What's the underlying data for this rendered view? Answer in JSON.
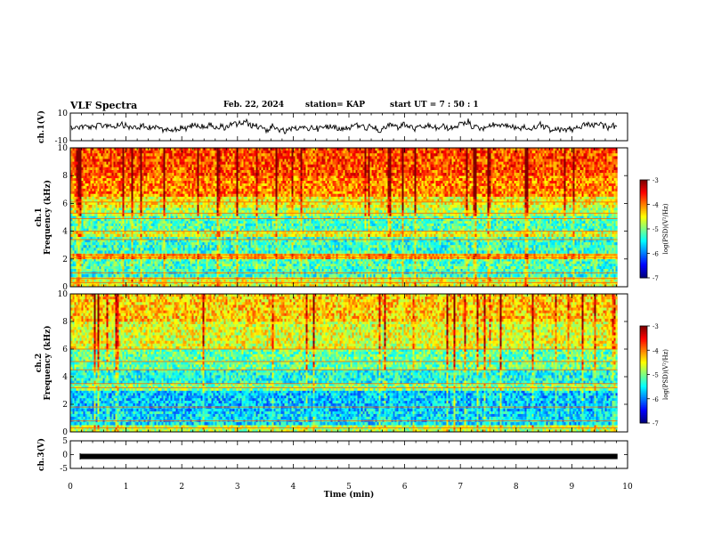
{
  "header": {
    "title": "VLF Spectra",
    "date": "Feb. 22, 2024",
    "station": "station= KAP",
    "start_ut": "start UT =   7 : 50 : 1"
  },
  "colorbar_label": "log(PSD)(V²/Hz)",
  "colors": {
    "jet": [
      "#000080",
      "#0000ff",
      "#0080ff",
      "#00ffff",
      "#80ff80",
      "#ffff00",
      "#ff8000",
      "#ff0000",
      "#800000"
    ]
  },
  "chart_data": [
    {
      "type": "line",
      "ylabel": "ch.1(V)",
      "ylim": [
        -10,
        10
      ],
      "yticks": [
        "10",
        "-10"
      ],
      "x_range": [
        0,
        9.82
      ],
      "note": "waveform envelope of ch.1 signal"
    },
    {
      "type": "heatmap",
      "ylabel": "ch.1\nFrequency (kHz)",
      "ylim": [
        0,
        10
      ],
      "yticks": [
        "0",
        "2",
        "4",
        "6",
        "8",
        "10"
      ],
      "x_range": [
        0,
        9.82
      ],
      "colorbar": {
        "ticks": [
          "-3",
          "-4",
          "-5",
          "-6",
          "-7"
        ],
        "range": [
          -7,
          -3
        ]
      },
      "bands": [
        {
          "f": [
            0.0,
            0.7
          ],
          "level": -4.6
        },
        {
          "f": [
            0.7,
            1.3
          ],
          "level": -5.3
        },
        {
          "f": [
            1.3,
            2.0
          ],
          "level": -5.2
        },
        {
          "f": [
            2.0,
            2.4
          ],
          "level": -4.2
        },
        {
          "f": [
            2.4,
            3.6
          ],
          "level": -5.3
        },
        {
          "f": [
            3.6,
            4.0
          ],
          "level": -4.6
        },
        {
          "f": [
            4.0,
            5.1
          ],
          "level": -5.2
        },
        {
          "f": [
            5.1,
            5.7
          ],
          "level": -4.8
        },
        {
          "f": [
            5.7,
            6.5
          ],
          "level": -4.5
        },
        {
          "f": [
            6.5,
            8.0
          ],
          "level": -4.0
        },
        {
          "f": [
            8.0,
            10.0
          ],
          "level": -3.8
        }
      ],
      "lines_khz": [
        0.3,
        0.6,
        1.0,
        2.1,
        2.3,
        3.4,
        4.0,
        4.9,
        5.3,
        6.1
      ]
    },
    {
      "type": "heatmap",
      "ylabel": "ch.2\nFrequency (kHz)",
      "ylim": [
        0,
        10
      ],
      "yticks": [
        "0",
        "2",
        "4",
        "6",
        "8",
        "10"
      ],
      "x_range": [
        0,
        9.82
      ],
      "colorbar": {
        "ticks": [
          "-3",
          "-4",
          "-5",
          "-6",
          "-7"
        ],
        "range": [
          -7,
          -3
        ]
      },
      "bands": [
        {
          "f": [
            0.0,
            0.5
          ],
          "level": -4.8
        },
        {
          "f": [
            0.5,
            1.5
          ],
          "level": -5.6
        },
        {
          "f": [
            1.5,
            3.0
          ],
          "level": -5.7
        },
        {
          "f": [
            3.0,
            3.5
          ],
          "level": -5.0
        },
        {
          "f": [
            3.5,
            4.5
          ],
          "level": -5.4
        },
        {
          "f": [
            4.5,
            6.0
          ],
          "level": -5.1
        },
        {
          "f": [
            6.0,
            8.0
          ],
          "level": -4.6
        },
        {
          "f": [
            8.0,
            10.0
          ],
          "level": -4.3
        }
      ],
      "lines_khz": [
        0.3,
        0.8,
        1.8,
        3.2,
        3.5,
        4.5,
        5.1,
        6.0
      ]
    },
    {
      "type": "line",
      "ylabel": "ch.3(V)",
      "ylim": [
        -5,
        5
      ],
      "yticks": [
        "5",
        "0",
        "-5"
      ],
      "x_range": [
        0,
        9.82
      ],
      "level": -0.5,
      "note": "ch.3 appears as a constant filled band near -0.5 V"
    }
  ],
  "xaxis": {
    "label": "Time (min)",
    "ticks": [
      "0",
      "1",
      "2",
      "3",
      "4",
      "5",
      "6",
      "7",
      "8",
      "9",
      "10"
    ],
    "xlim": [
      0,
      10
    ]
  }
}
